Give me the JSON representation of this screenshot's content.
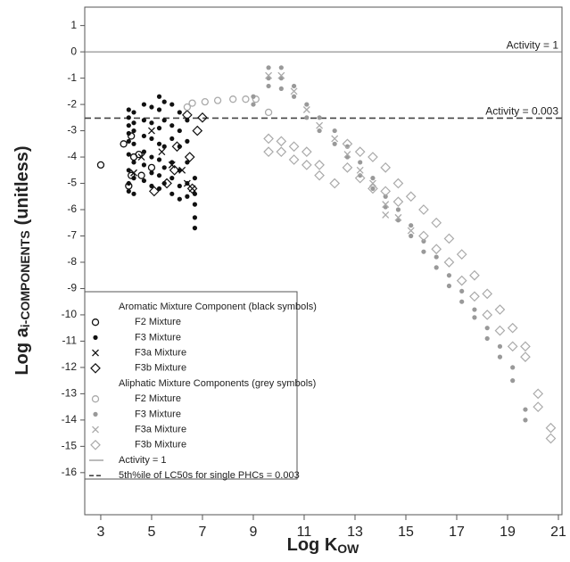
{
  "chart_data": {
    "type": "scatter",
    "xlabel": {
      "main": "Log K",
      "sub": "OW"
    },
    "ylabel": {
      "main": "Log a",
      "sub": "i-COMPONENTS",
      "tail": "(unitless)"
    },
    "xlim": [
      2.37,
      21.14
    ],
    "xticks": [
      3,
      5,
      7,
      9,
      11,
      13,
      15,
      17,
      19,
      21
    ],
    "ylim": [
      -17.6,
      1.7
    ],
    "yticks": [
      1,
      0,
      -1,
      -2,
      -3,
      -4,
      -5,
      -6,
      -7,
      -8,
      -9,
      -10,
      -11,
      -12,
      -13,
      -14,
      -15,
      -16
    ],
    "reference_lines": [
      {
        "value": 0,
        "label": "Activity = 1",
        "name": "Activity = 1",
        "style": "solid",
        "color": "#777777"
      },
      {
        "value": -2.52,
        "label": "Activity = 0.003",
        "name": "5th%ile of LC50s for single PHCs = 0.003",
        "style": "dashed",
        "color": "#444444"
      }
    ],
    "legend_groups": [
      "Aromatic Mixture Component (black symbols)",
      "Aliphatic Mixture Components (grey symbols)"
    ],
    "series": [
      {
        "name": "F2 Mixture",
        "group": 0,
        "marker": "circle",
        "color": "#111111",
        "x": [
          3.0,
          3.9,
          4.1,
          4.2,
          4.3,
          4.5,
          4.6,
          5.0,
          4.2
        ],
        "values": [
          -4.3,
          -3.5,
          -5.1,
          -4.7,
          -4.0,
          -3.9,
          -4.7,
          -4.4,
          -3.2
        ]
      },
      {
        "name": "F3 Mixture",
        "group": 0,
        "marker": "dot",
        "color": "#111111",
        "x": [
          4.1,
          4.1,
          4.1,
          4.1,
          4.1,
          4.1,
          4.1,
          4.1,
          4.1,
          4.3,
          4.3,
          4.3,
          4.3,
          4.3,
          4.3,
          4.3,
          4.7,
          4.7,
          4.7,
          4.7,
          4.7,
          4.7,
          5.0,
          5.0,
          5.0,
          5.0,
          5.0,
          5.0,
          5.3,
          5.3,
          5.3,
          5.3,
          5.3,
          5.3,
          5.3,
          5.5,
          5.5,
          5.5,
          5.5,
          5.5,
          5.8,
          5.8,
          5.8,
          5.8,
          5.8,
          5.8,
          6.1,
          6.1,
          6.1,
          6.1,
          6.1,
          6.1,
          6.4,
          6.4,
          6.4,
          6.4,
          6.4,
          6.7,
          6.7,
          6.7,
          6.7,
          6.7
        ],
        "values": [
          -2.2,
          -2.5,
          -2.8,
          -3.1,
          -3.4,
          -3.9,
          -4.5,
          -5.0,
          -5.3,
          -2.3,
          -2.7,
          -3.0,
          -3.5,
          -4.2,
          -4.8,
          -5.4,
          -2.0,
          -2.6,
          -3.2,
          -3.8,
          -4.3,
          -4.9,
          -2.1,
          -2.7,
          -3.3,
          -4.0,
          -4.6,
          -5.1,
          -1.7,
          -2.2,
          -2.9,
          -3.5,
          -4.1,
          -4.7,
          -5.2,
          -1.9,
          -2.6,
          -3.6,
          -4.4,
          -5.0,
          -2.0,
          -2.8,
          -3.3,
          -4.2,
          -4.8,
          -5.4,
          -2.3,
          -3.0,
          -3.6,
          -4.5,
          -5.1,
          -5.6,
          -2.6,
          -3.4,
          -4.2,
          -5.0,
          -5.5,
          -4.8,
          -5.4,
          -5.8,
          -6.3,
          -6.7
        ]
      },
      {
        "name": "F3a Mixture",
        "group": 0,
        "marker": "x",
        "color": "#111111",
        "x": [
          4.3,
          4.6,
          5.0,
          5.4,
          5.8,
          6.2,
          6.4,
          6.6
        ],
        "values": [
          -4.6,
          -4.0,
          -3.0,
          -3.8,
          -4.3,
          -4.5,
          -5.0,
          -5.2
        ]
      },
      {
        "name": "F3b Mixture",
        "group": 0,
        "marker": "diamond",
        "color": "#111111",
        "x": [
          5.1,
          5.6,
          6.0,
          6.4,
          6.8,
          7.0,
          6.6,
          6.5,
          5.9
        ],
        "values": [
          -5.3,
          -5.0,
          -3.6,
          -2.4,
          -3.0,
          -2.5,
          -5.2,
          -4.0,
          -4.5
        ]
      },
      {
        "name": "F2 Mixture",
        "group": 1,
        "marker": "circle",
        "color": "#aaaaaa",
        "x": [
          6.4,
          6.6,
          7.1,
          7.6,
          8.2,
          8.7,
          9.1,
          9.6
        ],
        "values": [
          -2.1,
          -1.95,
          -1.9,
          -1.85,
          -1.8,
          -1.8,
          -1.8,
          -2.3
        ]
      },
      {
        "name": "F3 Mixture",
        "group": 1,
        "marker": "dot",
        "color": "#999999",
        "x": [
          9.0,
          9.0,
          9.6,
          9.6,
          9.6,
          10.1,
          10.1,
          10.1,
          10.6,
          10.6,
          11.1,
          11.1,
          11.6,
          11.6,
          12.2,
          12.2,
          12.7,
          12.7,
          13.2,
          13.2,
          13.7,
          13.7,
          14.2,
          14.2,
          14.7,
          14.7,
          15.2,
          15.2,
          15.7,
          15.7,
          16.2,
          16.2,
          16.7,
          16.7,
          17.2,
          17.2,
          17.7,
          17.7,
          18.2,
          18.2,
          18.7,
          18.7,
          19.2,
          19.2,
          19.7,
          19.7
        ],
        "values": [
          -1.7,
          -2.0,
          -0.6,
          -1.0,
          -1.3,
          -0.6,
          -1.0,
          -1.4,
          -1.3,
          -1.7,
          -2.0,
          -2.5,
          -2.5,
          -3.0,
          -3.0,
          -3.5,
          -3.6,
          -4.0,
          -4.2,
          -4.7,
          -4.8,
          -5.2,
          -5.5,
          -5.9,
          -6.0,
          -6.4,
          -6.6,
          -7.0,
          -7.2,
          -7.6,
          -7.8,
          -8.2,
          -8.5,
          -8.9,
          -9.1,
          -9.5,
          -9.8,
          -10.1,
          -10.5,
          -10.9,
          -11.2,
          -11.6,
          -12.0,
          -12.5,
          -13.6,
          -14.0
        ]
      },
      {
        "name": "F3a Mixture",
        "group": 1,
        "marker": "x",
        "color": "#aaaaaa",
        "x": [
          9.6,
          10.1,
          10.6,
          11.1,
          11.6,
          12.2,
          12.7,
          13.2,
          13.7,
          14.2,
          14.2,
          14.7,
          15.2
        ],
        "values": [
          -0.9,
          -0.9,
          -1.5,
          -2.2,
          -2.8,
          -3.3,
          -3.9,
          -4.5,
          -5.0,
          -5.8,
          -6.2,
          -6.3,
          -6.8
        ]
      },
      {
        "name": "F3b Mixture",
        "group": 1,
        "marker": "diamond",
        "color": "#aaaaaa",
        "x": [
          9.6,
          10.1,
          10.6,
          12.7,
          13.2,
          13.7,
          14.2,
          14.7,
          15.2,
          15.7,
          16.2,
          16.7,
          17.2,
          17.7,
          18.2,
          18.7,
          19.2,
          19.7,
          20.2,
          20.7,
          9.6,
          10.1,
          10.6,
          11.1,
          11.6,
          12.2,
          12.7,
          13.2,
          13.7,
          14.2,
          14.7,
          15.7,
          16.2,
          16.7,
          17.2,
          17.7,
          18.2,
          18.7,
          19.2,
          19.7,
          20.2,
          20.7,
          11.1,
          11.6
        ],
        "values": [
          -3.3,
          -3.4,
          -3.6,
          -3.5,
          -3.8,
          -4.0,
          -4.4,
          -5.0,
          -5.5,
          -6.0,
          -6.5,
          -7.1,
          -7.7,
          -8.5,
          -9.2,
          -9.8,
          -10.5,
          -11.2,
          -13.0,
          -14.3,
          -3.8,
          -3.8,
          -4.1,
          -4.3,
          -4.7,
          -5.0,
          -4.4,
          -4.8,
          -5.2,
          -5.3,
          -5.7,
          -7.0,
          -7.5,
          -8.0,
          -8.7,
          -9.3,
          -10.0,
          -10.6,
          -11.2,
          -11.6,
          -13.5,
          -14.7,
          -3.8,
          -4.3
        ]
      }
    ]
  }
}
